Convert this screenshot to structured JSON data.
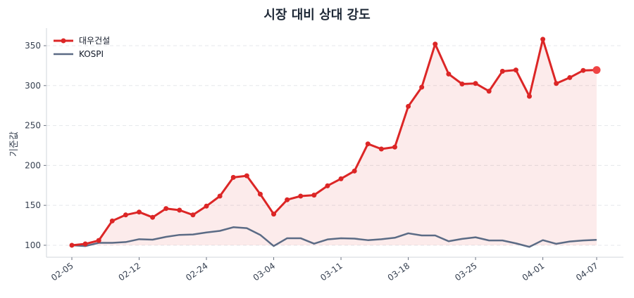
{
  "chart_data": {
    "type": "line",
    "title": "시장 대비 상대 강도",
    "xlabel": "",
    "ylabel": "기준값",
    "ylim": [
      85,
      372
    ],
    "yticks": [
      100,
      150,
      200,
      250,
      300,
      350
    ],
    "xticks": [
      {
        "index": 0,
        "label": "02-05"
      },
      {
        "index": 5,
        "label": "02-12"
      },
      {
        "index": 10,
        "label": "02-24"
      },
      {
        "index": 15,
        "label": "03-04"
      },
      {
        "index": 20,
        "label": "03-11"
      },
      {
        "index": 25,
        "label": "03-18"
      },
      {
        "index": 30,
        "label": "03-25"
      },
      {
        "index": 35,
        "label": "04-01"
      },
      {
        "index": 39,
        "label": "04-07"
      }
    ],
    "grid": true,
    "legend": "top-left",
    "series": [
      {
        "name": "대우건설",
        "color": "#dc2626",
        "markers": true,
        "fill": true,
        "values": [
          100,
          101.7,
          106,
          130.5,
          138,
          141.6,
          135,
          146,
          144,
          138,
          149,
          161.6,
          185,
          187,
          164,
          139,
          157,
          161.6,
          162.8,
          174.5,
          183.3,
          193,
          227,
          220.6,
          223,
          274,
          298,
          352,
          314.5,
          302,
          302.7,
          293,
          318,
          319.5,
          286.6,
          358,
          302.7,
          310,
          319,
          319.5
        ]
      },
      {
        "name": "KOSPI",
        "color": "#5b6b85",
        "markers": false,
        "fill": false,
        "values": [
          100,
          99,
          103,
          103,
          104,
          107.6,
          107,
          110.5,
          113,
          113.5,
          116,
          118,
          122.6,
          121.4,
          113,
          99,
          108.8,
          108.8,
          102,
          107.3,
          108.8,
          108.3,
          106.4,
          107.6,
          109.4,
          115,
          112.3,
          112.3,
          105,
          108,
          110,
          106,
          106,
          102.4,
          98,
          106.4,
          101.8,
          104.7,
          106,
          106.8
        ]
      }
    ]
  }
}
